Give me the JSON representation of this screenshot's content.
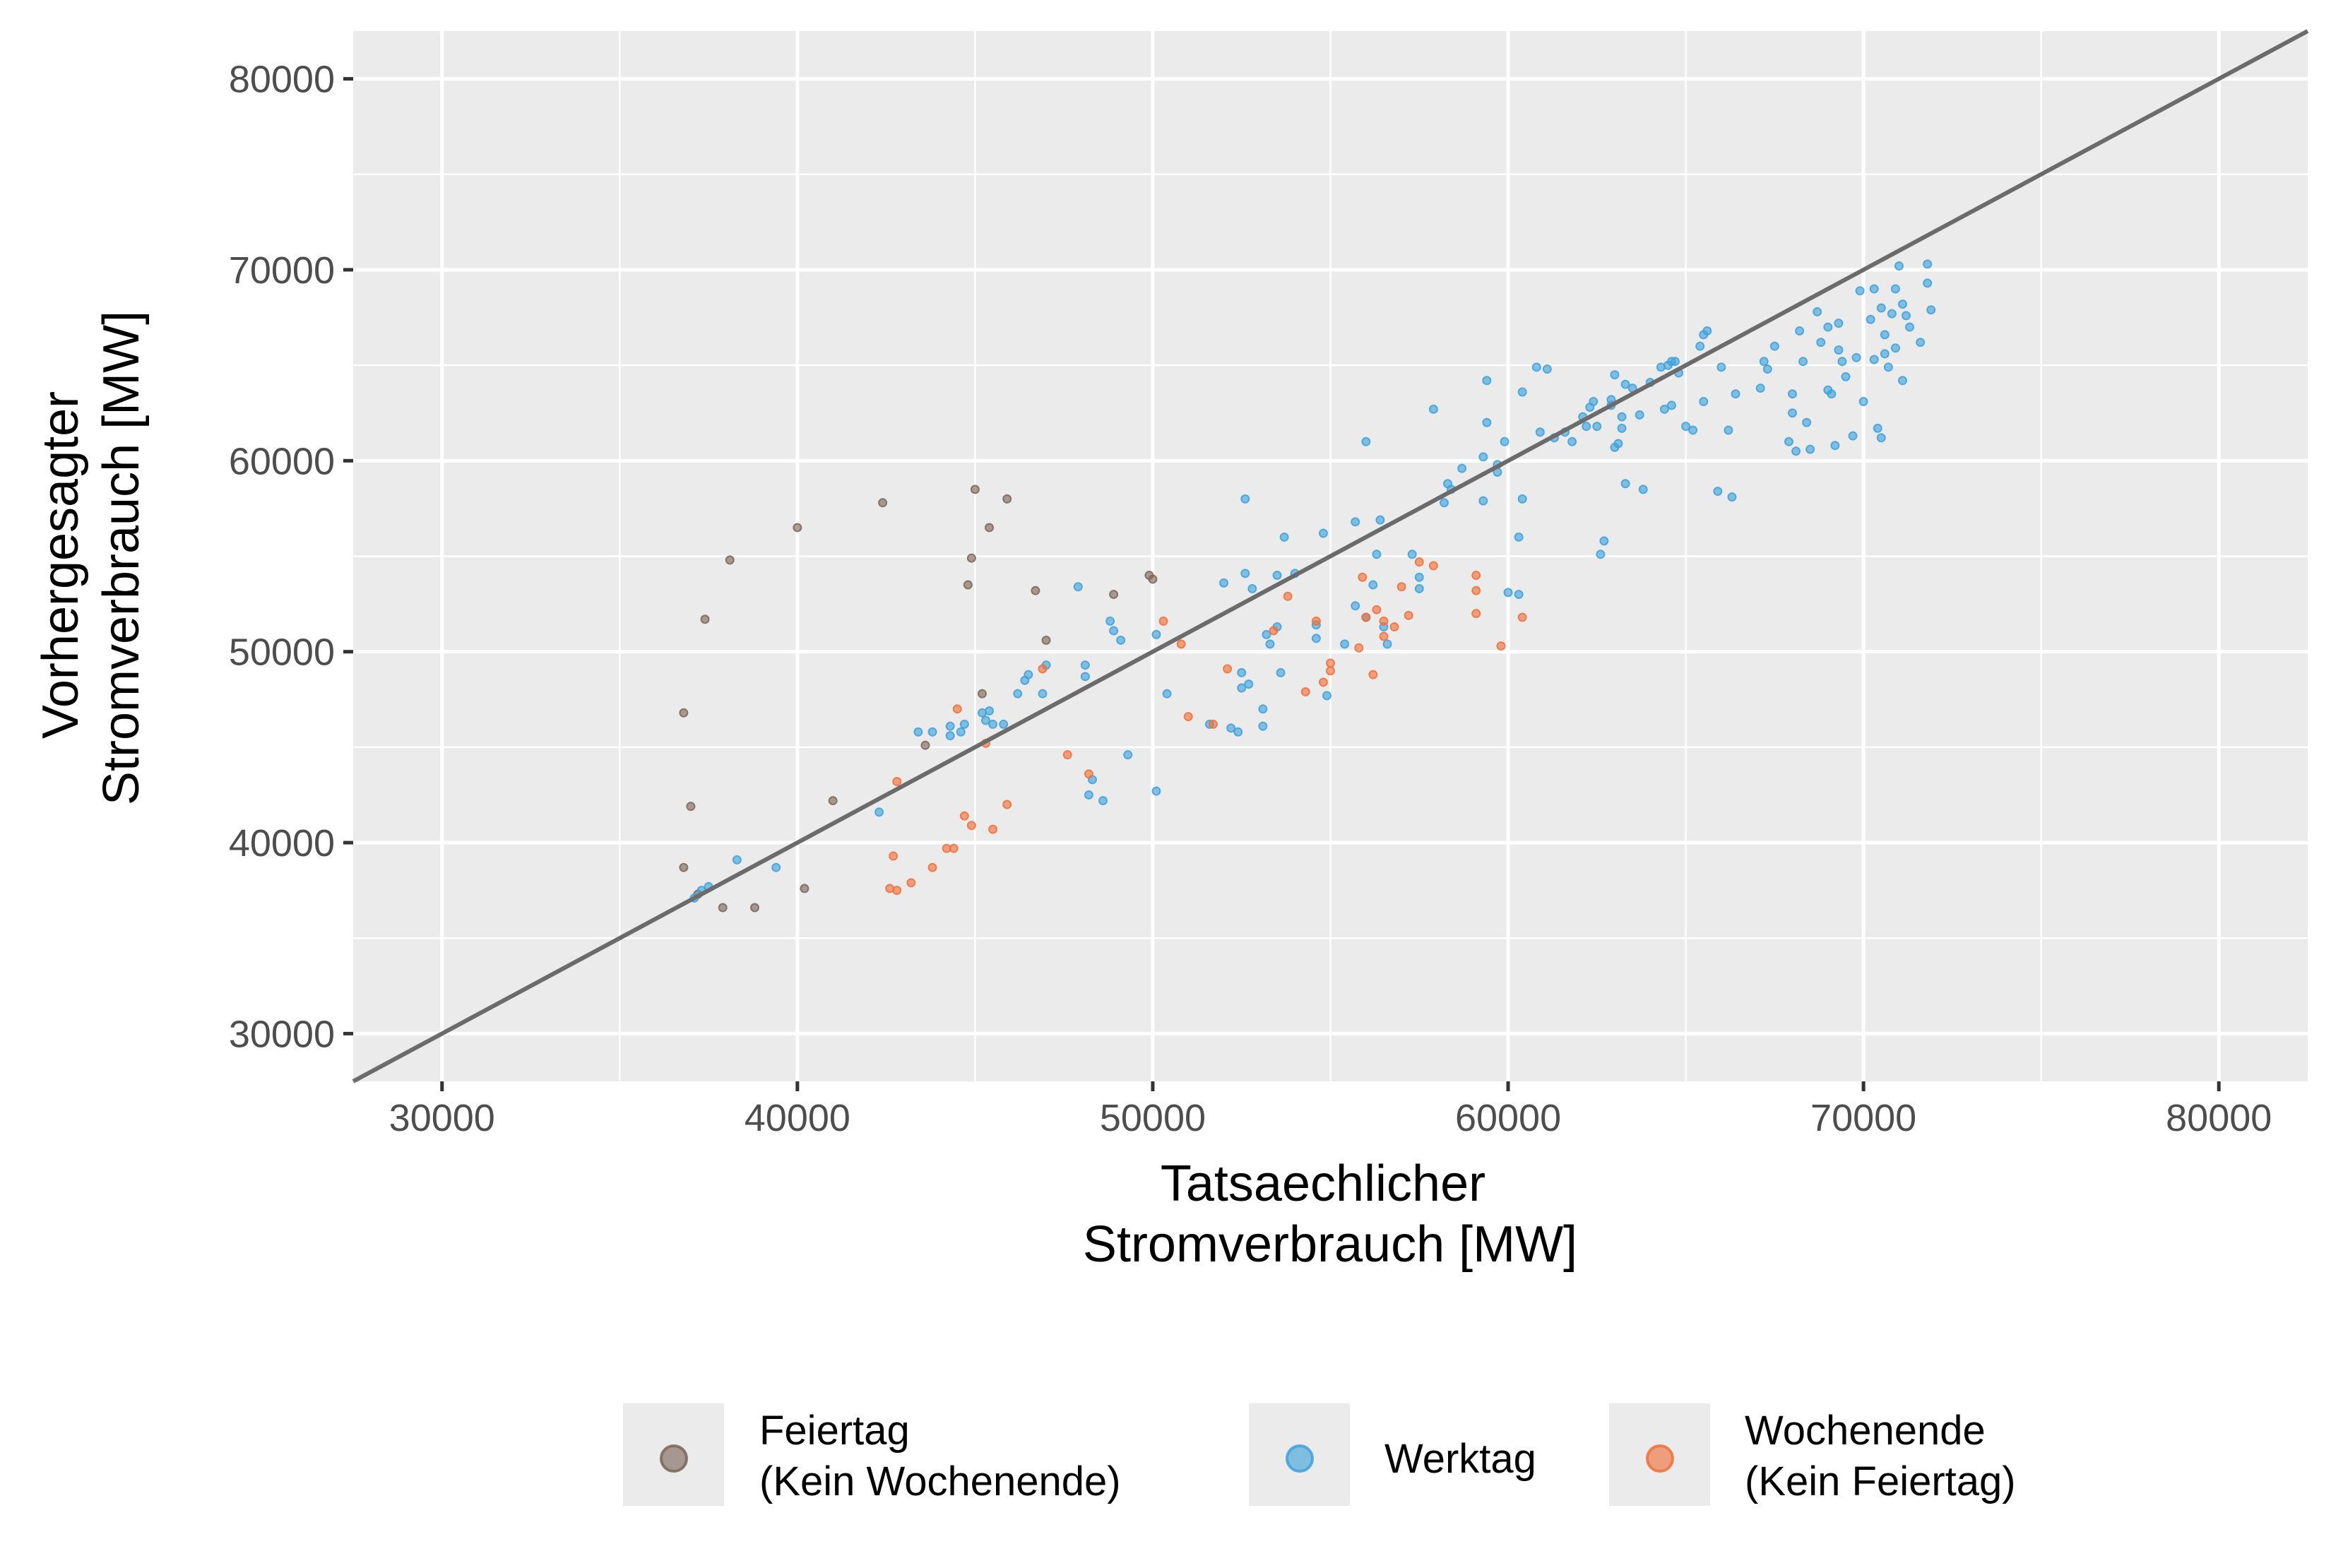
{
  "chart_data": {
    "type": "scatter",
    "xlabel": [
      "Tatsaechlicher",
      "Stromverbrauch [MW]"
    ],
    "ylabel": [
      "Vorhergesagter",
      "Stromverbrauch [MW]"
    ],
    "xlim": [
      27500,
      82500
    ],
    "ylim": [
      27500,
      82500
    ],
    "xticks": [
      "30000",
      "40000",
      "50000",
      "60000",
      "70000",
      "80000"
    ],
    "yticks": [
      "30000",
      "40000",
      "50000",
      "60000",
      "70000",
      "80000"
    ],
    "grid": true,
    "background": "#ebebeb",
    "reference_line": {
      "slope": 1,
      "intercept": 0,
      "color": "#6b6b6b"
    },
    "legend_position": "bottom",
    "series": [
      {
        "name": [
          "Feiertag",
          "(Kein Wochenende)"
        ],
        "color": "#7b6558",
        "points": [
          [
            36800,
            46800
          ],
          [
            37000,
            41900
          ],
          [
            36800,
            38700
          ],
          [
            37400,
            51700
          ],
          [
            38100,
            54800
          ],
          [
            37200,
            37300
          ],
          [
            37900,
            36600
          ],
          [
            38800,
            36600
          ],
          [
            40000,
            56500
          ],
          [
            40200,
            37600
          ],
          [
            41000,
            42200
          ],
          [
            42400,
            57800
          ],
          [
            43600,
            45100
          ],
          [
            45000,
            58500
          ],
          [
            45400,
            56500
          ],
          [
            44800,
            53500
          ],
          [
            44900,
            54900
          ],
          [
            45900,
            58000
          ],
          [
            45200,
            47800
          ],
          [
            46700,
            53200
          ],
          [
            47000,
            50600
          ],
          [
            48900,
            53000
          ],
          [
            50000,
            53800
          ],
          [
            49900,
            54000
          ]
        ]
      },
      {
        "name": [
          "Werktag"
        ],
        "color": "#3ea1dc",
        "points": [
          [
            37100,
            37100
          ],
          [
            37300,
            37500
          ],
          [
            37500,
            37700
          ],
          [
            38300,
            39100
          ],
          [
            39400,
            38700
          ],
          [
            42300,
            41600
          ],
          [
            43400,
            45800
          ],
          [
            43800,
            45800
          ],
          [
            44300,
            46100
          ],
          [
            44600,
            45800
          ],
          [
            44300,
            45600
          ],
          [
            44700,
            46200
          ],
          [
            45200,
            46800
          ],
          [
            45400,
            46900
          ],
          [
            45500,
            46200
          ],
          [
            45300,
            46400
          ],
          [
            45800,
            46200
          ],
          [
            46200,
            47800
          ],
          [
            46400,
            48500
          ],
          [
            46500,
            48800
          ],
          [
            46900,
            47800
          ],
          [
            47000,
            49300
          ],
          [
            47900,
            53400
          ],
          [
            48100,
            48700
          ],
          [
            48100,
            49300
          ],
          [
            48200,
            42500
          ],
          [
            48300,
            43300
          ],
          [
            48600,
            42200
          ],
          [
            48800,
            51600
          ],
          [
            48900,
            51100
          ],
          [
            49100,
            50600
          ],
          [
            49300,
            44600
          ],
          [
            50100,
            42700
          ],
          [
            50100,
            50900
          ],
          [
            50400,
            47800
          ],
          [
            51600,
            46200
          ],
          [
            52000,
            53600
          ],
          [
            52200,
            46000
          ],
          [
            52400,
            45800
          ],
          [
            52500,
            48900
          ],
          [
            52600,
            58000
          ],
          [
            52600,
            54100
          ],
          [
            52700,
            48300
          ],
          [
            52500,
            48100
          ],
          [
            52800,
            53300
          ],
          [
            53100,
            46100
          ],
          [
            53100,
            47000
          ],
          [
            53200,
            50900
          ],
          [
            53300,
            50400
          ],
          [
            53500,
            54000
          ],
          [
            53600,
            48900
          ],
          [
            53500,
            51300
          ],
          [
            53700,
            56000
          ],
          [
            54000,
            54100
          ],
          [
            54600,
            50700
          ],
          [
            54600,
            51400
          ],
          [
            54800,
            56200
          ],
          [
            54900,
            47700
          ],
          [
            55400,
            50400
          ],
          [
            55700,
            52400
          ],
          [
            55700,
            56800
          ],
          [
            56000,
            61000
          ],
          [
            56000,
            51800
          ],
          [
            56200,
            53500
          ],
          [
            56300,
            55100
          ],
          [
            56400,
            56900
          ],
          [
            56600,
            50400
          ],
          [
            56500,
            51300
          ],
          [
            57300,
            55100
          ],
          [
            57500,
            53300
          ],
          [
            57500,
            53900
          ],
          [
            57900,
            62700
          ],
          [
            58300,
            58800
          ],
          [
            58200,
            57800
          ],
          [
            58400,
            58500
          ],
          [
            58700,
            59600
          ],
          [
            59300,
            57900
          ],
          [
            59300,
            60200
          ],
          [
            59400,
            64200
          ],
          [
            59400,
            62000
          ],
          [
            59700,
            59400
          ],
          [
            59700,
            59800
          ],
          [
            59900,
            61000
          ],
          [
            60000,
            53100
          ],
          [
            60300,
            53000
          ],
          [
            60300,
            56000
          ],
          [
            60400,
            58000
          ],
          [
            60400,
            63600
          ],
          [
            60800,
            64900
          ],
          [
            60900,
            61500
          ],
          [
            61100,
            64800
          ],
          [
            61300,
            61200
          ],
          [
            61600,
            61500
          ],
          [
            61800,
            61000
          ],
          [
            62100,
            62300
          ],
          [
            62200,
            61800
          ],
          [
            62300,
            62800
          ],
          [
            62400,
            63100
          ],
          [
            62500,
            61800
          ],
          [
            62600,
            55100
          ],
          [
            62700,
            55800
          ],
          [
            62900,
            62900
          ],
          [
            62900,
            63200
          ],
          [
            63000,
            64500
          ],
          [
            63100,
            60900
          ],
          [
            63000,
            60700
          ],
          [
            63200,
            61700
          ],
          [
            63200,
            62300
          ],
          [
            63300,
            58800
          ],
          [
            63300,
            64000
          ],
          [
            63500,
            63800
          ],
          [
            63700,
            62400
          ],
          [
            63800,
            58500
          ],
          [
            64000,
            64100
          ],
          [
            64300,
            64900
          ],
          [
            64500,
            65000
          ],
          [
            64600,
            65200
          ],
          [
            64700,
            65200
          ],
          [
            64400,
            62700
          ],
          [
            64600,
            62900
          ],
          [
            64800,
            64600
          ],
          [
            65000,
            61800
          ],
          [
            65200,
            61600
          ],
          [
            65400,
            66000
          ],
          [
            65500,
            66600
          ],
          [
            65600,
            66800
          ],
          [
            65500,
            63100
          ],
          [
            65900,
            58400
          ],
          [
            66000,
            64900
          ],
          [
            66200,
            61600
          ],
          [
            66300,
            58100
          ],
          [
            66400,
            63500
          ],
          [
            67100,
            63800
          ],
          [
            67200,
            65200
          ],
          [
            67300,
            64800
          ],
          [
            67500,
            66000
          ],
          [
            67900,
            61000
          ],
          [
            68000,
            62500
          ],
          [
            68000,
            63500
          ],
          [
            68100,
            60500
          ],
          [
            68200,
            66800
          ],
          [
            68300,
            65200
          ],
          [
            68400,
            62000
          ],
          [
            68500,
            60600
          ],
          [
            68700,
            67800
          ],
          [
            68800,
            66200
          ],
          [
            69000,
            67000
          ],
          [
            69000,
            63700
          ],
          [
            69100,
            63500
          ],
          [
            69200,
            60800
          ],
          [
            69300,
            67200
          ],
          [
            69300,
            65800
          ],
          [
            69400,
            65200
          ],
          [
            69500,
            64400
          ],
          [
            69700,
            61300
          ],
          [
            69800,
            65400
          ],
          [
            69900,
            68900
          ],
          [
            70000,
            63100
          ],
          [
            70200,
            67400
          ],
          [
            70300,
            69000
          ],
          [
            70300,
            65300
          ],
          [
            70400,
            61700
          ],
          [
            70500,
            61200
          ],
          [
            70500,
            68000
          ],
          [
            70600,
            65600
          ],
          [
            70600,
            66600
          ],
          [
            70700,
            64900
          ],
          [
            70800,
            67700
          ],
          [
            70900,
            69000
          ],
          [
            70900,
            65900
          ],
          [
            71000,
            70200
          ],
          [
            71100,
            64200
          ],
          [
            71100,
            68200
          ],
          [
            71200,
            67600
          ],
          [
            71300,
            67000
          ],
          [
            71600,
            66200
          ],
          [
            71800,
            70300
          ],
          [
            71800,
            69300
          ],
          [
            71900,
            67900
          ]
        ]
      },
      {
        "name": [
          "Wochenende",
          "(Kein Feiertag)"
        ],
        "color": "#f0703a",
        "points": [
          [
            42600,
            37600
          ],
          [
            42700,
            39300
          ],
          [
            42800,
            37500
          ],
          [
            42800,
            43200
          ],
          [
            43200,
            37900
          ],
          [
            43800,
            38700
          ],
          [
            44200,
            39700
          ],
          [
            44400,
            39700
          ],
          [
            44500,
            47000
          ],
          [
            44700,
            41400
          ],
          [
            44900,
            40900
          ],
          [
            45300,
            45200
          ],
          [
            45500,
            40700
          ],
          [
            45900,
            42000
          ],
          [
            46900,
            49100
          ],
          [
            47600,
            44600
          ],
          [
            48200,
            43600
          ],
          [
            50300,
            51600
          ],
          [
            50800,
            50400
          ],
          [
            51000,
            46600
          ],
          [
            51700,
            46200
          ],
          [
            52100,
            49100
          ],
          [
            53400,
            51100
          ],
          [
            53800,
            52900
          ],
          [
            54300,
            47900
          ],
          [
            54600,
            51600
          ],
          [
            54800,
            48400
          ],
          [
            55000,
            49400
          ],
          [
            55000,
            49000
          ],
          [
            55800,
            50200
          ],
          [
            55900,
            53900
          ],
          [
            56000,
            51800
          ],
          [
            56200,
            48800
          ],
          [
            56300,
            52200
          ],
          [
            56500,
            51600
          ],
          [
            56500,
            50800
          ],
          [
            56800,
            51300
          ],
          [
            57000,
            53400
          ],
          [
            57200,
            51900
          ],
          [
            57500,
            54700
          ],
          [
            57900,
            54500
          ],
          [
            59100,
            54000
          ],
          [
            59100,
            53200
          ],
          [
            59100,
            52000
          ],
          [
            59800,
            50300
          ],
          [
            60400,
            51800
          ]
        ]
      }
    ]
  }
}
